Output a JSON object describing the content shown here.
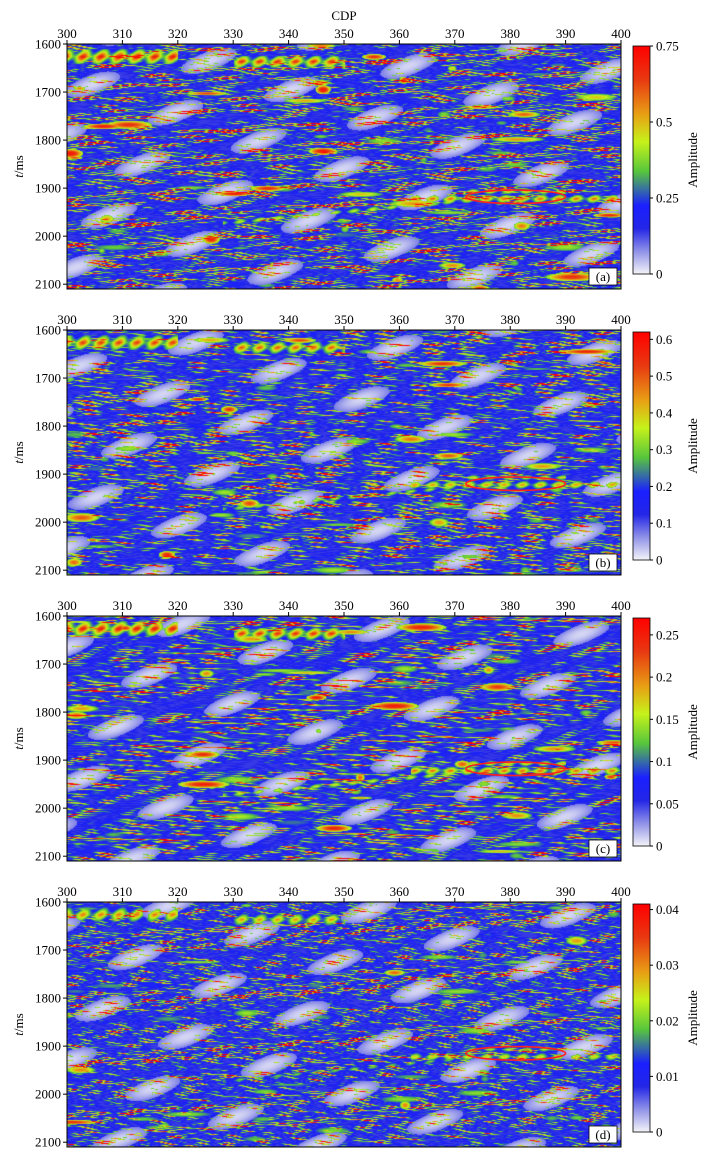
{
  "chart_data": [
    {
      "type": "heatmap",
      "panel_label": "(a)",
      "xlabel": "CDP",
      "ylabel_italic": "t",
      "ylabel_rest": "/ms",
      "xlim": [
        300,
        400
      ],
      "ylim": [
        1600,
        2110
      ],
      "x_ticks": [
        300,
        310,
        320,
        330,
        340,
        350,
        360,
        370,
        380,
        390,
        400
      ],
      "y_ticks": [
        1600,
        1700,
        1800,
        1900,
        2000,
        2100
      ],
      "colorbar": {
        "label": "Amplitude",
        "min": 0,
        "max": 0.75,
        "ticks": [
          0,
          0.25,
          0.5,
          0.75
        ],
        "tick_labels": [
          "0",
          "0.25",
          "0.5",
          "0.75"
        ]
      },
      "highlight_ellipse": {
        "cx": 381,
        "cy": 1918,
        "rx": 9,
        "ry": 14
      }
    },
    {
      "type": "heatmap",
      "panel_label": "(b)",
      "xlabel": "",
      "ylabel_italic": "t",
      "ylabel_rest": "/ms",
      "xlim": [
        300,
        400
      ],
      "ylim": [
        1600,
        2110
      ],
      "x_ticks": [
        300,
        310,
        320,
        330,
        340,
        350,
        360,
        370,
        380,
        390,
        400
      ],
      "y_ticks": [
        1600,
        1700,
        1800,
        1900,
        2000,
        2100
      ],
      "colorbar": {
        "label": "Amplitude",
        "min": 0,
        "max": 0.62,
        "ticks": [
          0,
          0.1,
          0.2,
          0.3,
          0.4,
          0.5,
          0.6
        ],
        "tick_labels": [
          "0",
          "0.1",
          "0.2",
          "0.3",
          "0.4",
          "0.5",
          "0.6"
        ]
      },
      "highlight_ellipse": {
        "cx": 381,
        "cy": 1920,
        "rx": 9,
        "ry": 14
      }
    },
    {
      "type": "heatmap",
      "panel_label": "(c)",
      "xlabel": "",
      "ylabel_italic": "t",
      "ylabel_rest": "/ms",
      "xlim": [
        300,
        400
      ],
      "ylim": [
        1600,
        2110
      ],
      "x_ticks": [
        300,
        310,
        320,
        330,
        340,
        350,
        360,
        370,
        380,
        390,
        400
      ],
      "y_ticks": [
        1600,
        1700,
        1800,
        1900,
        2000,
        2100
      ],
      "colorbar": {
        "label": "Amplitude",
        "min": 0,
        "max": 0.27,
        "ticks": [
          0,
          0.05,
          0.1,
          0.15,
          0.2,
          0.25
        ],
        "tick_labels": [
          "0",
          "0.05",
          "0.1",
          "0.15",
          "0.2",
          "0.25"
        ]
      },
      "highlight_ellipse": {
        "cx": 381,
        "cy": 1918,
        "rx": 9,
        "ry": 14
      }
    },
    {
      "type": "heatmap",
      "panel_label": "(d)",
      "xlabel": "",
      "ylabel_italic": "t",
      "ylabel_rest": "/ms",
      "xlim": [
        300,
        400
      ],
      "ylim": [
        1600,
        2110
      ],
      "x_ticks": [
        300,
        310,
        320,
        330,
        340,
        350,
        360,
        370,
        380,
        390,
        400
      ],
      "y_ticks": [
        1600,
        1700,
        1800,
        1900,
        2000,
        2100
      ],
      "colorbar": {
        "label": "Amplitude",
        "min": 0,
        "max": 0.041,
        "ticks": [
          0,
          0.01,
          0.02,
          0.03,
          0.04
        ],
        "tick_labels": [
          "0",
          "0.01",
          "0.02",
          "0.03",
          "0.04"
        ]
      },
      "highlight_ellipse": {
        "cx": 381,
        "cy": 1915,
        "rx": 9,
        "ry": 14
      }
    }
  ],
  "colors": {
    "colormap": [
      "#f4f4f8",
      "#8f91e8",
      "#2326e6",
      "#1a1fff",
      "#57c63c",
      "#c6f21a",
      "#e8a014",
      "#e83a12",
      "#ff0000"
    ],
    "ellipse": "#ff2020",
    "frame": "#000000"
  }
}
